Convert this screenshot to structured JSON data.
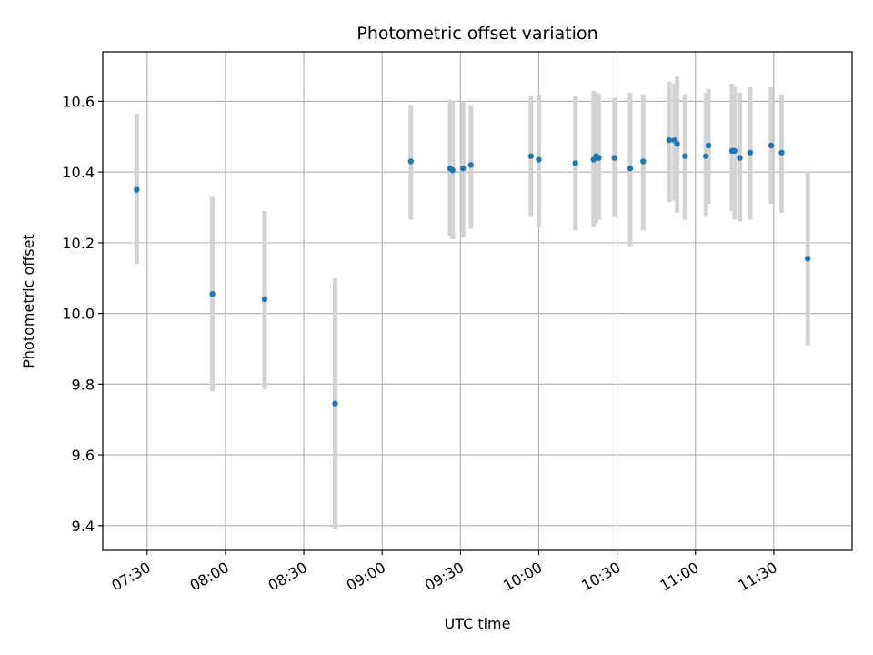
{
  "chart_data": {
    "type": "scatter",
    "title": "Photometric offset variation",
    "xlabel": "UTC time",
    "ylabel": "Photometric offset",
    "x_tick_labels": [
      "07:30",
      "08:00",
      "08:30",
      "09:00",
      "09:30",
      "10:00",
      "10:30",
      "11:00",
      "11:30"
    ],
    "x_ticks": [
      "07:30",
      "08:00",
      "08:30",
      "09:00",
      "09:30",
      "10:00",
      "10:30",
      "11:00",
      "11:30"
    ],
    "y_ticks": [
      9.4,
      9.6,
      9.8,
      10.0,
      10.2,
      10.4,
      10.6
    ],
    "y_tick_labels": [
      "9.4",
      "9.6",
      "9.8",
      "10.0",
      "10.2",
      "10.4",
      "10.6"
    ],
    "xlim": [
      "07:13",
      "12:00"
    ],
    "ylim": [
      9.33,
      10.74
    ],
    "grid": true,
    "point_color": "#1f77b4",
    "errorbar_color": "#d3d3d3",
    "series": [
      {
        "points": [
          {
            "x": "07:26",
            "y": 10.35,
            "ylow": 10.14,
            "yhigh": 10.565
          },
          {
            "x": "07:55",
            "y": 10.055,
            "ylow": 9.78,
            "yhigh": 10.33
          },
          {
            "x": "08:15",
            "y": 10.04,
            "ylow": 9.785,
            "yhigh": 10.29
          },
          {
            "x": "08:42",
            "y": 9.745,
            "ylow": 9.39,
            "yhigh": 10.1
          },
          {
            "x": "09:11",
            "y": 10.43,
            "ylow": 10.265,
            "yhigh": 10.59
          },
          {
            "x": "09:26",
            "y": 10.41,
            "ylow": 10.22,
            "yhigh": 10.605
          },
          {
            "x": "09:27",
            "y": 10.405,
            "ylow": 10.21,
            "yhigh": 10.6
          },
          {
            "x": "09:31",
            "y": 10.41,
            "ylow": 10.215,
            "yhigh": 10.6
          },
          {
            "x": "09:34",
            "y": 10.42,
            "ylow": 10.24,
            "yhigh": 10.59
          },
          {
            "x": "09:57",
            "y": 10.445,
            "ylow": 10.275,
            "yhigh": 10.615
          },
          {
            "x": "10:00",
            "y": 10.435,
            "ylow": 10.245,
            "yhigh": 10.62
          },
          {
            "x": "10:14",
            "y": 10.425,
            "ylow": 10.235,
            "yhigh": 10.615
          },
          {
            "x": "10:21",
            "y": 10.435,
            "ylow": 10.245,
            "yhigh": 10.63
          },
          {
            "x": "10:22",
            "y": 10.445,
            "ylow": 10.255,
            "yhigh": 10.625
          },
          {
            "x": "10:23",
            "y": 10.44,
            "ylow": 10.265,
            "yhigh": 10.62
          },
          {
            "x": "10:29",
            "y": 10.44,
            "ylow": 10.275,
            "yhigh": 10.61
          },
          {
            "x": "10:35",
            "y": 10.41,
            "ylow": 10.19,
            "yhigh": 10.625
          },
          {
            "x": "10:40",
            "y": 10.43,
            "ylow": 10.235,
            "yhigh": 10.62
          },
          {
            "x": "10:50",
            "y": 10.49,
            "ylow": 10.315,
            "yhigh": 10.655
          },
          {
            "x": "10:52",
            "y": 10.49,
            "ylow": 10.32,
            "yhigh": 10.65
          },
          {
            "x": "10:53",
            "y": 10.48,
            "ylow": 10.285,
            "yhigh": 10.67
          },
          {
            "x": "10:56",
            "y": 10.445,
            "ylow": 10.265,
            "yhigh": 10.62
          },
          {
            "x": "11:04",
            "y": 10.445,
            "ylow": 10.275,
            "yhigh": 10.625
          },
          {
            "x": "11:05",
            "y": 10.475,
            "ylow": 10.31,
            "yhigh": 10.635
          },
          {
            "x": "11:14",
            "y": 10.46,
            "ylow": 10.29,
            "yhigh": 10.65
          },
          {
            "x": "11:15",
            "y": 10.46,
            "ylow": 10.265,
            "yhigh": 10.64
          },
          {
            "x": "11:17",
            "y": 10.44,
            "ylow": 10.26,
            "yhigh": 10.625
          },
          {
            "x": "11:21",
            "y": 10.455,
            "ylow": 10.265,
            "yhigh": 10.64
          },
          {
            "x": "11:29",
            "y": 10.475,
            "ylow": 10.31,
            "yhigh": 10.64
          },
          {
            "x": "11:33",
            "y": 10.455,
            "ylow": 10.285,
            "yhigh": 10.62
          },
          {
            "x": "11:43",
            "y": 10.155,
            "ylow": 9.91,
            "yhigh": 10.4
          }
        ]
      }
    ]
  }
}
